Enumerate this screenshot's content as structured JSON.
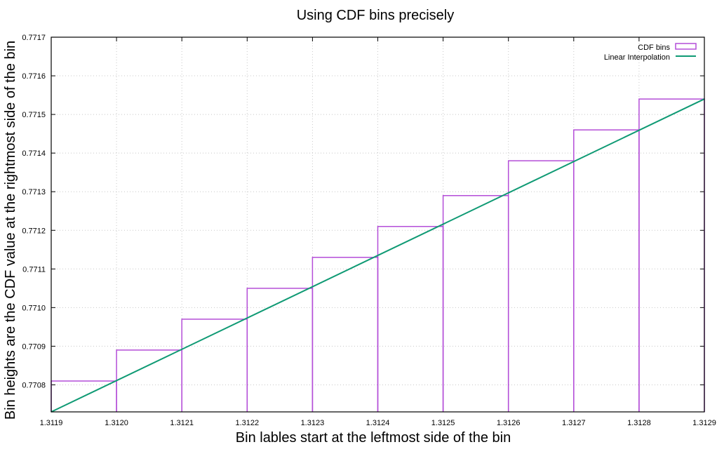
{
  "chart_data": {
    "type": "line",
    "title": "Using CDF bins precisely",
    "xlabel": "Bin lables start at the leftmost side of the bin",
    "ylabel": "Bin heights are the CDF value at the rightmost side of the bin",
    "xlim": [
      1.3119,
      1.3129
    ],
    "ylim": [
      0.77073,
      0.7717
    ],
    "x_ticks": [
      1.3119,
      1.312,
      1.3121,
      1.3122,
      1.3123,
      1.3124,
      1.3125,
      1.3126,
      1.3127,
      1.3128,
      1.3129
    ],
    "x_tick_labels": [
      "1.3119",
      "1.3120",
      "1.3121",
      "1.3122",
      "1.3123",
      "1.3124",
      "1.3125",
      "1.3126",
      "1.3127",
      "1.3128",
      "1.3129"
    ],
    "y_ticks": [
      0.7708,
      0.7709,
      0.771,
      0.7711,
      0.7712,
      0.7713,
      0.7714,
      0.7715,
      0.7716,
      0.7717
    ],
    "y_tick_labels": [
      "0.7708",
      "0.7709",
      "0.7710",
      "0.7711",
      "0.7712",
      "0.7713",
      "0.7714",
      "0.7715",
      "0.7716",
      "0.7717"
    ],
    "grid": true,
    "legend_position": "top-right",
    "series": [
      {
        "name": "CDF bins",
        "kind": "bins",
        "color": "#b44ed8",
        "bin_starts": [
          1.3119,
          1.312,
          1.3121,
          1.3122,
          1.3123,
          1.3124,
          1.3125,
          1.3126,
          1.3127,
          1.3128
        ],
        "bin_width": 0.0001,
        "values": [
          0.77081,
          0.77089,
          0.77097,
          0.77105,
          0.77113,
          0.77121,
          0.77129,
          0.77138,
          0.77146,
          0.77154
        ]
      },
      {
        "name": "Linear Interpolation",
        "kind": "line",
        "color": "#0f9a74",
        "x": [
          1.3119,
          1.3129
        ],
        "y": [
          0.77073,
          0.77154
        ]
      }
    ]
  }
}
